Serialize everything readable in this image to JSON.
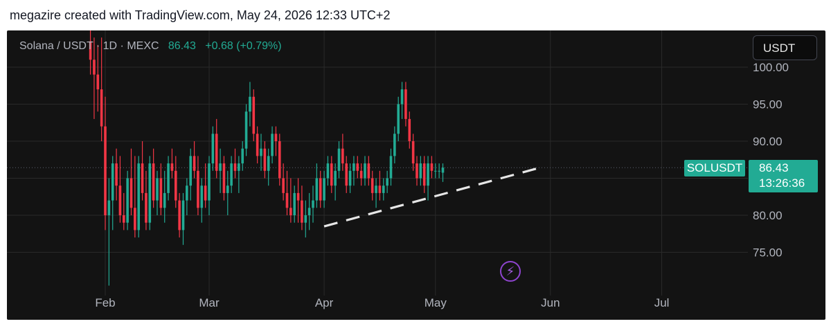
{
  "header": {
    "attribution": "megazire created with TradingView.com, May 24, 2026 12:33 UTC+2"
  },
  "legend": {
    "symbol": "Solana / USDT · 1D · MEXC",
    "last": "86.43",
    "change": "+0.68 (+0.79%)"
  },
  "currency_button": "USDT",
  "price_tag": {
    "symbol": "SOLUSDT",
    "price": "86.43",
    "countdown": "13:26:36"
  },
  "colors": {
    "background": "#131313",
    "up": "#22ab94",
    "down": "#f23645",
    "grid": "#2a2a2a",
    "text": "#b2b5be",
    "trendline": "#e6e6e6",
    "bolt": "#9b4fd9"
  },
  "icons": {
    "bolt": "lightning-bolt-icon"
  },
  "chart_data": {
    "type": "candlestick",
    "title": "Solana / USDT · 1D · MEXC",
    "y_ticks": [
      75,
      80,
      85,
      90,
      95,
      100
    ],
    "y_tick_labels": [
      "75.00",
      "80.00",
      "",
      "90.00",
      "95.00",
      "100.00"
    ],
    "ylim": [
      70,
      104
    ],
    "x_ticks": [
      {
        "label": "Feb",
        "date": "2026-02-01"
      },
      {
        "label": "Mar",
        "date": "2026-03-01"
      },
      {
        "label": "Apr",
        "date": "2026-04-01"
      },
      {
        "label": "May",
        "date": "2026-05-01"
      },
      {
        "label": "Jun",
        "date": "2026-06-01"
      },
      {
        "label": "Jul",
        "date": "2026-07-01"
      }
    ],
    "first_date": "2026-01-28",
    "last_price_line": 86.43,
    "candles": [
      [
        103.5,
        105,
        99,
        101
      ],
      [
        101,
        104,
        93,
        99
      ],
      [
        99,
        103,
        94,
        97
      ],
      [
        97,
        104,
        90,
        92
      ],
      [
        92,
        96,
        78,
        80
      ],
      [
        80,
        85,
        70.5,
        82
      ],
      [
        82,
        88,
        78,
        87
      ],
      [
        87,
        89,
        82,
        84
      ],
      [
        84,
        88,
        79,
        80
      ],
      [
        80,
        83,
        78,
        79
      ],
      [
        79,
        86,
        78,
        85
      ],
      [
        85,
        89,
        80,
        81
      ],
      [
        81,
        88,
        77,
        78
      ],
      [
        78,
        88,
        77,
        87
      ],
      [
        87,
        90,
        82,
        83
      ],
      [
        83,
        86,
        78,
        79
      ],
      [
        79,
        88,
        78,
        87
      ],
      [
        87,
        89,
        81,
        82
      ],
      [
        82,
        86,
        80,
        85
      ],
      [
        85,
        87,
        80,
        81
      ],
      [
        81,
        86,
        79,
        83
      ],
      [
        83,
        88,
        82,
        87
      ],
      [
        87,
        89,
        85,
        86
      ],
      [
        86,
        88,
        81,
        82
      ],
      [
        82,
        83,
        77,
        78
      ],
      [
        78,
        83,
        76,
        82
      ],
      [
        82,
        85,
        80,
        84
      ],
      [
        84,
        89,
        82,
        88
      ],
      [
        88,
        90,
        85,
        86
      ],
      [
        86,
        88,
        80,
        81
      ],
      [
        81,
        85,
        79,
        84
      ],
      [
        84,
        87,
        81,
        82
      ],
      [
        82,
        88,
        80,
        87
      ],
      [
        87,
        92,
        86,
        91
      ],
      [
        91,
        93,
        85,
        86
      ],
      [
        86,
        89,
        83,
        87
      ],
      [
        87,
        88,
        82,
        83
      ],
      [
        83,
        86,
        80,
        84
      ],
      [
        84,
        88,
        83,
        87
      ],
      [
        87,
        89,
        85,
        86
      ],
      [
        86,
        88,
        83,
        87
      ],
      [
        87,
        90,
        86,
        89
      ],
      [
        89,
        95,
        88,
        94
      ],
      [
        94,
        98,
        92,
        96
      ],
      [
        96,
        97,
        90,
        91
      ],
      [
        91,
        92,
        87,
        88
      ],
      [
        88,
        91,
        86,
        89
      ],
      [
        89,
        90,
        85,
        86
      ],
      [
        86,
        89,
        84,
        88
      ],
      [
        88,
        92,
        87,
        91
      ],
      [
        91,
        92,
        88,
        90
      ],
      [
        90,
        91,
        84,
        85
      ],
      [
        85,
        87,
        82,
        83
      ],
      [
        83,
        86,
        80,
        81
      ],
      [
        81,
        85,
        79,
        80
      ],
      [
        80,
        84,
        79,
        83
      ],
      [
        83,
        85,
        79,
        82
      ],
      [
        82,
        84,
        78,
        79
      ],
      [
        79,
        82,
        77,
        80
      ],
      [
        80,
        83,
        78,
        81
      ],
      [
        81,
        84,
        79,
        82
      ],
      [
        82,
        87,
        81,
        85
      ],
      [
        85,
        86,
        81,
        82
      ],
      [
        82,
        86,
        81,
        85
      ],
      [
        85,
        88,
        84,
        87
      ],
      [
        87,
        88,
        83,
        84
      ],
      [
        84,
        87,
        82,
        86
      ],
      [
        86,
        90,
        85,
        89
      ],
      [
        89,
        91,
        86,
        87
      ],
      [
        87,
        88,
        83,
        84
      ],
      [
        84,
        87,
        83,
        86
      ],
      [
        86,
        88,
        84,
        87
      ],
      [
        87,
        88,
        85,
        86
      ],
      [
        86,
        87,
        84,
        85
      ],
      [
        85,
        88,
        84,
        87
      ],
      [
        87,
        88,
        84,
        85
      ],
      [
        85,
        86,
        82,
        83
      ],
      [
        83,
        85,
        81,
        84
      ],
      [
        84,
        86,
        82,
        83
      ],
      [
        83,
        85,
        82,
        84
      ],
      [
        84,
        86,
        83,
        85
      ],
      [
        85,
        89,
        84,
        88
      ],
      [
        88,
        92,
        87,
        91
      ],
      [
        91,
        96,
        90,
        95
      ],
      [
        95,
        98,
        93,
        97
      ],
      [
        97,
        98,
        92,
        93
      ],
      [
        93,
        94,
        89,
        90
      ],
      [
        90,
        91,
        86,
        87
      ],
      [
        87,
        88,
        84,
        85
      ],
      [
        85,
        88,
        84,
        87
      ],
      [
        87,
        88,
        83,
        84
      ],
      [
        84,
        88,
        82,
        87
      ],
      [
        87,
        88,
        85,
        86
      ],
      [
        86,
        87,
        85,
        86
      ],
      [
        86,
        87,
        85,
        86
      ],
      [
        85.75,
        87,
        84.5,
        86.43
      ]
    ],
    "trendline": {
      "start_date": "2026-04-01",
      "start_price": 78.5,
      "end_date": "2026-05-29",
      "end_price": 86.4,
      "style": "dashed"
    }
  }
}
